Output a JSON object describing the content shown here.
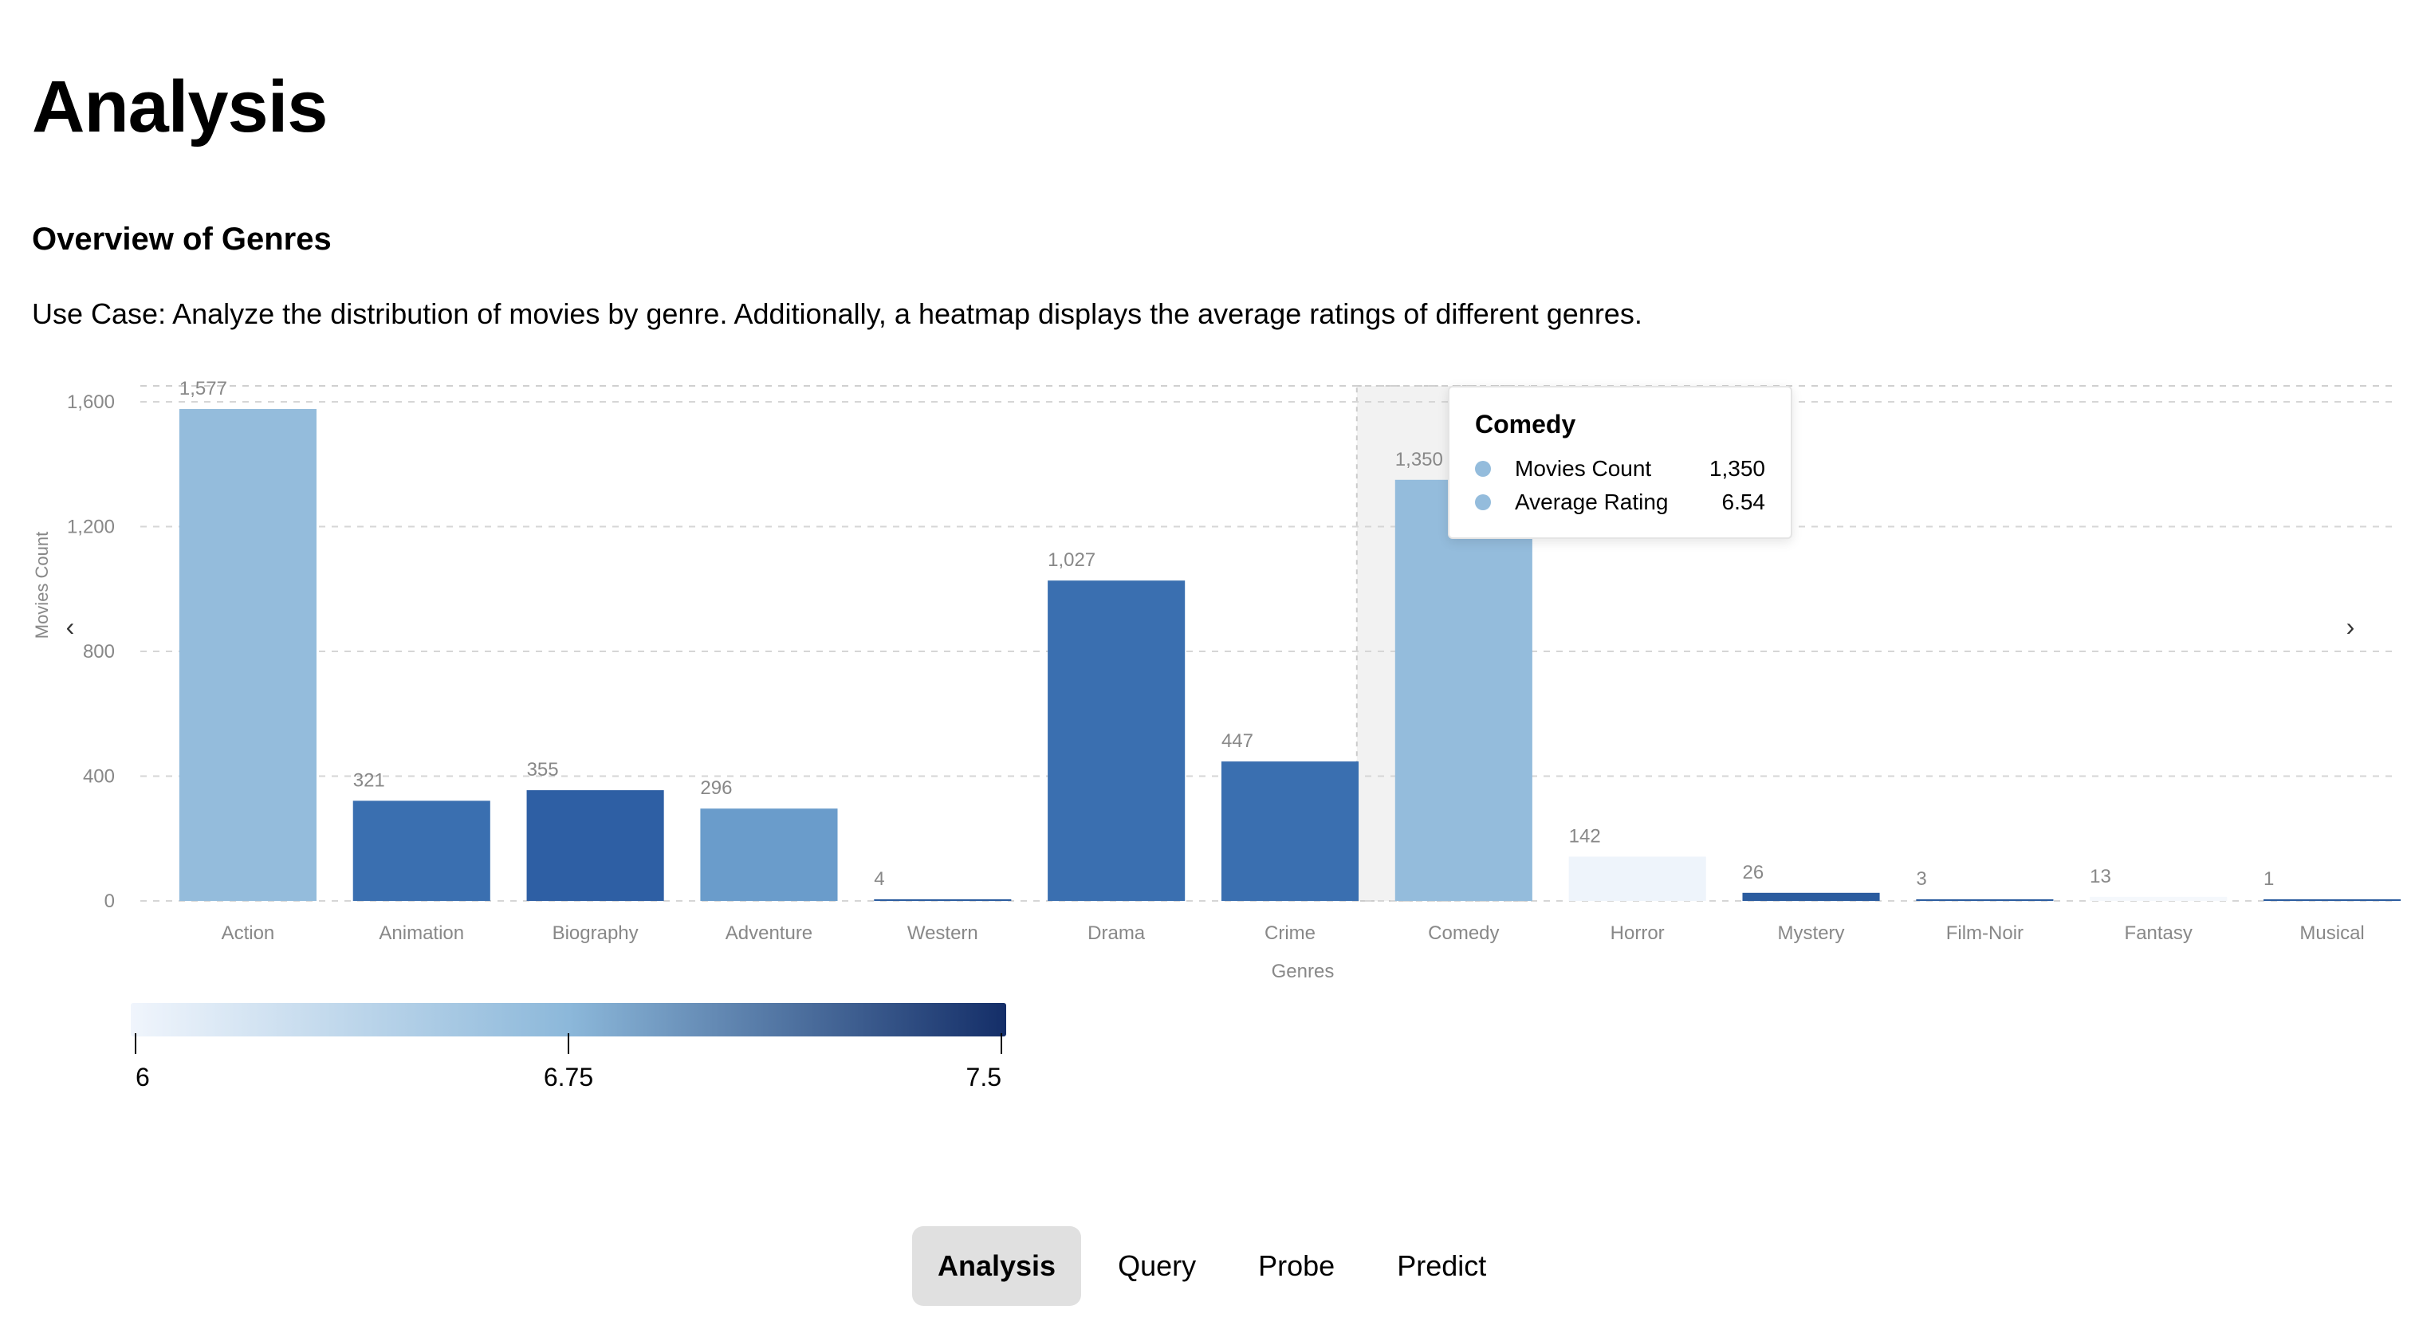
{
  "page": {
    "title": "Analysis"
  },
  "section": {
    "title": "Overview of Genres",
    "use_case": "Use Case: Analyze the distribution of movies by genre. Additionally, a heatmap displays the average ratings of different genres."
  },
  "chart_data": {
    "type": "bar",
    "categories": [
      "Action",
      "Animation",
      "Biography",
      "Adventure",
      "Western",
      "Drama",
      "Crime",
      "Comedy",
      "Horror",
      "Mystery",
      "Film-Noir",
      "Fantasy",
      "Musical"
    ],
    "series": [
      {
        "values": [
          1577,
          321,
          355,
          296,
          4,
          1027,
          447,
          1350,
          142,
          26,
          3,
          13,
          1
        ]
      }
    ],
    "value_labels": [
      "1,577",
      "321",
      "355",
      "296",
      "4",
      "1,027",
      "447",
      "1,350",
      "142",
      "26",
      "3",
      "13",
      "1"
    ],
    "bar_colors": [
      "#94bcdc",
      "#3a6fb0",
      "#2e5fa4",
      "#6a9ccb",
      "#2b5c9f",
      "#3a6fb0",
      "#3a6fb0",
      "#94bcdc",
      "#eef4fb",
      "#2b5c9f",
      "#2b5c9f",
      "#f5f8fc",
      "#2b5c9f"
    ],
    "xlabel": "Genres",
    "ylabel": "Movies Count",
    "yticks": [
      0,
      400,
      800,
      1200,
      1600
    ],
    "ytick_labels": [
      "0",
      "400",
      "800",
      "1,200",
      "1,600"
    ],
    "ylim": [
      0,
      1600
    ],
    "grid": true,
    "highlighted_category": "Comedy",
    "colorbar": {
      "min": 6,
      "max": 7.5,
      "ticks": [
        6,
        6.75,
        7.5
      ],
      "tick_labels": [
        "6",
        "6.75",
        "7.5"
      ],
      "color_start": "#f0f5fc",
      "color_mid": "#8cb8da",
      "color_end": "#142e68"
    }
  },
  "tooltip": {
    "title": "Comedy",
    "rows": [
      {
        "label": "Movies Count",
        "value": "1,350",
        "color": "#94bcdc"
      },
      {
        "label": "Average Rating",
        "value": "6.54",
        "color": "#94bcdc"
      }
    ]
  },
  "nav": {
    "prev_glyph": "‹",
    "next_glyph": "›"
  },
  "tabs": [
    {
      "label": "Analysis",
      "active": true
    },
    {
      "label": "Query",
      "active": false
    },
    {
      "label": "Probe",
      "active": false
    },
    {
      "label": "Predict",
      "active": false
    }
  ]
}
